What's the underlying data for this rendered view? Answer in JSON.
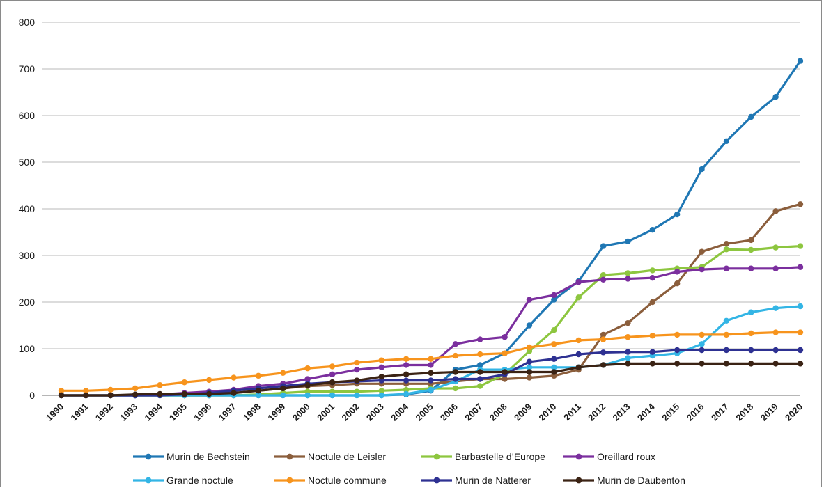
{
  "chart_data": {
    "type": "line",
    "title": "",
    "xlabel": "",
    "ylabel": "",
    "ylim": [
      0,
      800
    ],
    "yticks": [
      "0",
      "100",
      "200",
      "300",
      "400",
      "500",
      "600",
      "700",
      "800"
    ],
    "grid": true,
    "legend_position": "bottom",
    "x": [
      "1990",
      "1991",
      "1992",
      "1993",
      "1994",
      "1995",
      "1996",
      "1997",
      "1998",
      "1999",
      "2000",
      "2001",
      "2002",
      "2003",
      "2004",
      "2005",
      "2006",
      "2007",
      "2008",
      "2009",
      "2010",
      "2011",
      "2012",
      "2013",
      "2014",
      "2015",
      "2016",
      "2017",
      "2018",
      "2019",
      "2020"
    ],
    "series": [
      {
        "name": "Murin de Bechstein",
        "color": "#1f77b4",
        "values": [
          0,
          0,
          0,
          0,
          0,
          0,
          0,
          0,
          0,
          0,
          0,
          0,
          0,
          0,
          2,
          10,
          55,
          65,
          90,
          150,
          205,
          245,
          320,
          330,
          355,
          388,
          485,
          545,
          597,
          640,
          717
        ]
      },
      {
        "name": "Noctule de Leisler",
        "color": "#8b5e3c",
        "values": [
          0,
          0,
          0,
          0,
          0,
          0,
          0,
          5,
          10,
          15,
          20,
          22,
          25,
          25,
          25,
          25,
          30,
          35,
          35,
          38,
          42,
          55,
          130,
          155,
          200,
          240,
          308,
          325,
          333,
          395,
          410
        ]
      },
      {
        "name": "Barbastelle d’Europe",
        "color": "#8dc63f",
        "values": [
          0,
          0,
          0,
          0,
          0,
          0,
          0,
          0,
          2,
          5,
          8,
          8,
          8,
          10,
          12,
          15,
          15,
          20,
          45,
          95,
          140,
          210,
          258,
          262,
          268,
          272,
          275,
          313,
          312,
          317,
          320
        ]
      },
      {
        "name": "Oreillard roux",
        "color": "#7b2f9e",
        "values": [
          0,
          0,
          0,
          0,
          2,
          5,
          8,
          12,
          20,
          25,
          35,
          45,
          55,
          60,
          65,
          65,
          110,
          120,
          125,
          205,
          215,
          243,
          248,
          250,
          252,
          265,
          270,
          272,
          272,
          272,
          275
        ]
      },
      {
        "name": "Grande noctule",
        "color": "#33b5e5",
        "values": [
          0,
          0,
          0,
          0,
          0,
          0,
          0,
          0,
          0,
          0,
          0,
          0,
          0,
          0,
          3,
          12,
          30,
          55,
          55,
          60,
          60,
          60,
          65,
          80,
          85,
          90,
          110,
          160,
          178,
          187,
          191
        ]
      },
      {
        "name": "Noctule commune",
        "color": "#f7941d",
        "values": [
          10,
          10,
          12,
          15,
          22,
          28,
          33,
          38,
          42,
          48,
          58,
          62,
          70,
          75,
          78,
          78,
          85,
          88,
          90,
          103,
          110,
          118,
          120,
          125,
          128,
          130,
          130,
          130,
          133,
          135,
          135
        ]
      },
      {
        "name": "Murin de Natterer",
        "color": "#2e3192",
        "values": [
          0,
          0,
          0,
          0,
          0,
          2,
          5,
          10,
          15,
          20,
          25,
          28,
          30,
          32,
          32,
          32,
          35,
          35,
          45,
          72,
          78,
          88,
          92,
          93,
          93,
          97,
          97,
          97,
          97,
          97,
          97
        ]
      },
      {
        "name": "Murin de Daubenton",
        "color": "#3b2314",
        "values": [
          0,
          0,
          0,
          2,
          3,
          3,
          3,
          5,
          10,
          15,
          22,
          28,
          32,
          40,
          45,
          48,
          50,
          50,
          50,
          50,
          50,
          60,
          65,
          68,
          68,
          68,
          68,
          68,
          68,
          68,
          68
        ]
      }
    ]
  }
}
